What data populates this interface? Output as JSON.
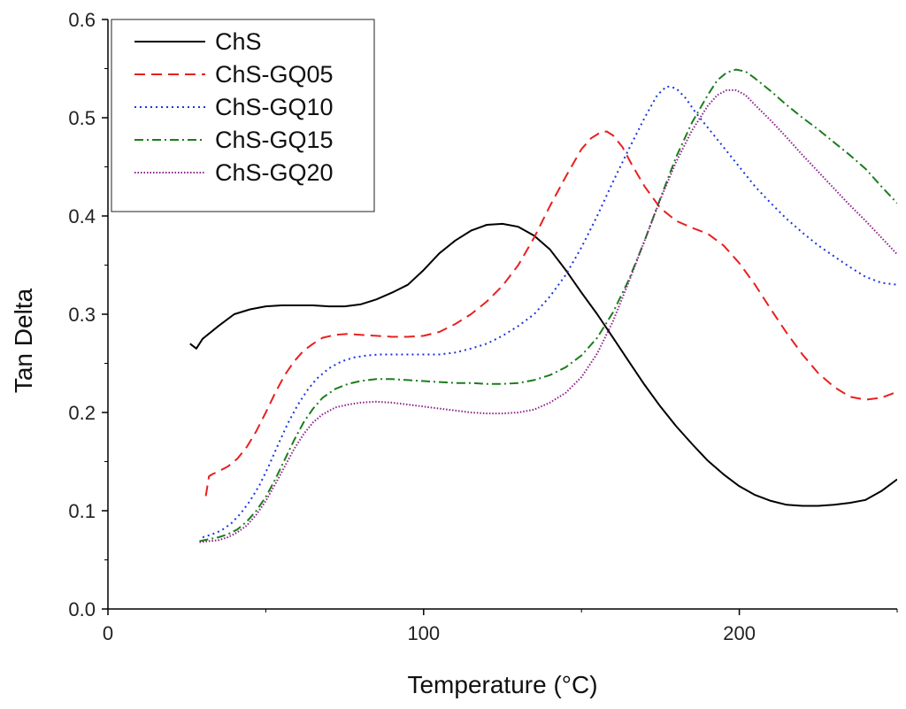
{
  "chart_data": {
    "type": "line",
    "title": "",
    "xlabel": "Temperature (°C)",
    "ylabel": "Tan Delta",
    "xlim": [
      0,
      250
    ],
    "ylim": [
      0.0,
      0.6
    ],
    "xticks": [
      0,
      100,
      200
    ],
    "xtick_labels": [
      "0",
      "100",
      "200"
    ],
    "yticks": [
      0.0,
      0.1,
      0.2,
      0.3,
      0.4,
      0.5,
      0.6
    ],
    "ytick_labels": [
      "0.0",
      "0.1",
      "0.2",
      "0.3",
      "0.4",
      "0.5",
      "0.6"
    ],
    "grid": false,
    "legend_position": "top-left",
    "series": [
      {
        "name": "ChS",
        "color": "#000000",
        "dash": "solid",
        "x": [
          26,
          28,
          30,
          35,
          40,
          45,
          50,
          55,
          60,
          65,
          70,
          75,
          80,
          85,
          90,
          95,
          100,
          105,
          110,
          115,
          120,
          125,
          130,
          135,
          140,
          145,
          150,
          155,
          160,
          165,
          170,
          175,
          180,
          185,
          190,
          195,
          200,
          205,
          210,
          215,
          220,
          225,
          230,
          235,
          240,
          245,
          250
        ],
        "y": [
          0.27,
          0.265,
          0.275,
          0.288,
          0.3,
          0.305,
          0.308,
          0.309,
          0.309,
          0.309,
          0.308,
          0.308,
          0.31,
          0.315,
          0.322,
          0.33,
          0.345,
          0.362,
          0.375,
          0.385,
          0.391,
          0.392,
          0.389,
          0.38,
          0.366,
          0.345,
          0.322,
          0.3,
          0.276,
          0.252,
          0.228,
          0.206,
          0.186,
          0.168,
          0.151,
          0.137,
          0.125,
          0.116,
          0.11,
          0.106,
          0.105,
          0.105,
          0.106,
          0.108,
          0.111,
          0.12,
          0.132
        ]
      },
      {
        "name": "ChS-GQ05",
        "color": "#e8201e",
        "dash": "dashed",
        "x": [
          31,
          31.5,
          32,
          33,
          35,
          38,
          41,
          44,
          47,
          50,
          53,
          56,
          59,
          62,
          65,
          68,
          72,
          76,
          80,
          85,
          90,
          95,
          100,
          105,
          110,
          115,
          120,
          125,
          130,
          135,
          140,
          145,
          150,
          153,
          156,
          158,
          160,
          163,
          166,
          170,
          175,
          180,
          185,
          190,
          195,
          200,
          205,
          210,
          215,
          220,
          225,
          230,
          235,
          240,
          245,
          250
        ],
        "y": [
          0.115,
          0.125,
          0.135,
          0.137,
          0.14,
          0.145,
          0.153,
          0.165,
          0.181,
          0.2,
          0.22,
          0.238,
          0.252,
          0.263,
          0.27,
          0.276,
          0.279,
          0.28,
          0.279,
          0.278,
          0.277,
          0.277,
          0.278,
          0.282,
          0.29,
          0.3,
          0.313,
          0.329,
          0.35,
          0.378,
          0.41,
          0.44,
          0.468,
          0.479,
          0.485,
          0.486,
          0.482,
          0.47,
          0.452,
          0.43,
          0.408,
          0.395,
          0.388,
          0.382,
          0.37,
          0.352,
          0.33,
          0.305,
          0.281,
          0.259,
          0.24,
          0.226,
          0.216,
          0.213,
          0.215,
          0.221
        ]
      },
      {
        "name": "ChS-GQ10",
        "color": "#1a35e0",
        "dash": "dotted",
        "x": [
          30,
          33,
          36,
          39,
          42,
          45,
          48,
          51,
          54,
          57,
          60,
          63,
          66,
          70,
          74,
          78,
          82,
          86,
          90,
          95,
          100,
          105,
          110,
          115,
          120,
          125,
          130,
          135,
          140,
          145,
          150,
          155,
          160,
          165,
          170,
          174,
          177,
          180,
          183,
          186,
          190,
          195,
          200,
          205,
          210,
          215,
          220,
          225,
          230,
          235,
          240,
          245,
          250
        ],
        "y": [
          0.073,
          0.076,
          0.08,
          0.087,
          0.097,
          0.11,
          0.126,
          0.146,
          0.168,
          0.189,
          0.207,
          0.222,
          0.234,
          0.245,
          0.252,
          0.256,
          0.258,
          0.259,
          0.259,
          0.259,
          0.259,
          0.259,
          0.261,
          0.265,
          0.27,
          0.278,
          0.288,
          0.3,
          0.318,
          0.34,
          0.368,
          0.4,
          0.435,
          0.468,
          0.5,
          0.523,
          0.532,
          0.53,
          0.52,
          0.506,
          0.49,
          0.47,
          0.45,
          0.43,
          0.413,
          0.397,
          0.383,
          0.37,
          0.359,
          0.348,
          0.338,
          0.332,
          0.33
        ]
      },
      {
        "name": "ChS-GQ15",
        "color": "#1c7d1c",
        "dash": "dashdot",
        "x": [
          29,
          32,
          35,
          38,
          41,
          44,
          47,
          50,
          53,
          56,
          59,
          62,
          65,
          68,
          72,
          76,
          80,
          85,
          90,
          95,
          100,
          105,
          110,
          115,
          120,
          125,
          130,
          135,
          140,
          145,
          150,
          155,
          160,
          165,
          170,
          175,
          180,
          185,
          190,
          193,
          196,
          199,
          202,
          205,
          210,
          215,
          220,
          225,
          230,
          235,
          240,
          245,
          250
        ],
        "y": [
          0.069,
          0.071,
          0.073,
          0.076,
          0.081,
          0.089,
          0.1,
          0.114,
          0.132,
          0.152,
          0.172,
          0.19,
          0.204,
          0.215,
          0.224,
          0.229,
          0.232,
          0.234,
          0.234,
          0.233,
          0.232,
          0.231,
          0.23,
          0.23,
          0.229,
          0.229,
          0.23,
          0.233,
          0.238,
          0.246,
          0.258,
          0.276,
          0.302,
          0.335,
          0.375,
          0.418,
          0.46,
          0.495,
          0.523,
          0.538,
          0.546,
          0.549,
          0.547,
          0.54,
          0.527,
          0.513,
          0.5,
          0.488,
          0.475,
          0.462,
          0.448,
          0.43,
          0.413
        ]
      },
      {
        "name": "ChS-GQ20",
        "color": "#8c1f8c",
        "dash": "finedot",
        "x": [
          29,
          32,
          35,
          38,
          41,
          44,
          47,
          50,
          53,
          56,
          59,
          62,
          65,
          68,
          72,
          76,
          80,
          85,
          90,
          95,
          100,
          105,
          110,
          115,
          120,
          125,
          130,
          135,
          140,
          145,
          150,
          155,
          160,
          165,
          170,
          175,
          180,
          185,
          190,
          193,
          196,
          199,
          202,
          205,
          210,
          215,
          220,
          225,
          230,
          235,
          240,
          245,
          250
        ],
        "y": [
          0.068,
          0.069,
          0.07,
          0.073,
          0.078,
          0.085,
          0.096,
          0.11,
          0.127,
          0.145,
          0.163,
          0.178,
          0.19,
          0.198,
          0.205,
          0.208,
          0.21,
          0.211,
          0.21,
          0.208,
          0.206,
          0.204,
          0.202,
          0.2,
          0.199,
          0.199,
          0.2,
          0.203,
          0.21,
          0.22,
          0.236,
          0.26,
          0.293,
          0.333,
          0.375,
          0.417,
          0.455,
          0.487,
          0.512,
          0.523,
          0.528,
          0.528,
          0.523,
          0.513,
          0.497,
          0.48,
          0.462,
          0.445,
          0.428,
          0.411,
          0.395,
          0.378,
          0.361
        ]
      }
    ]
  }
}
